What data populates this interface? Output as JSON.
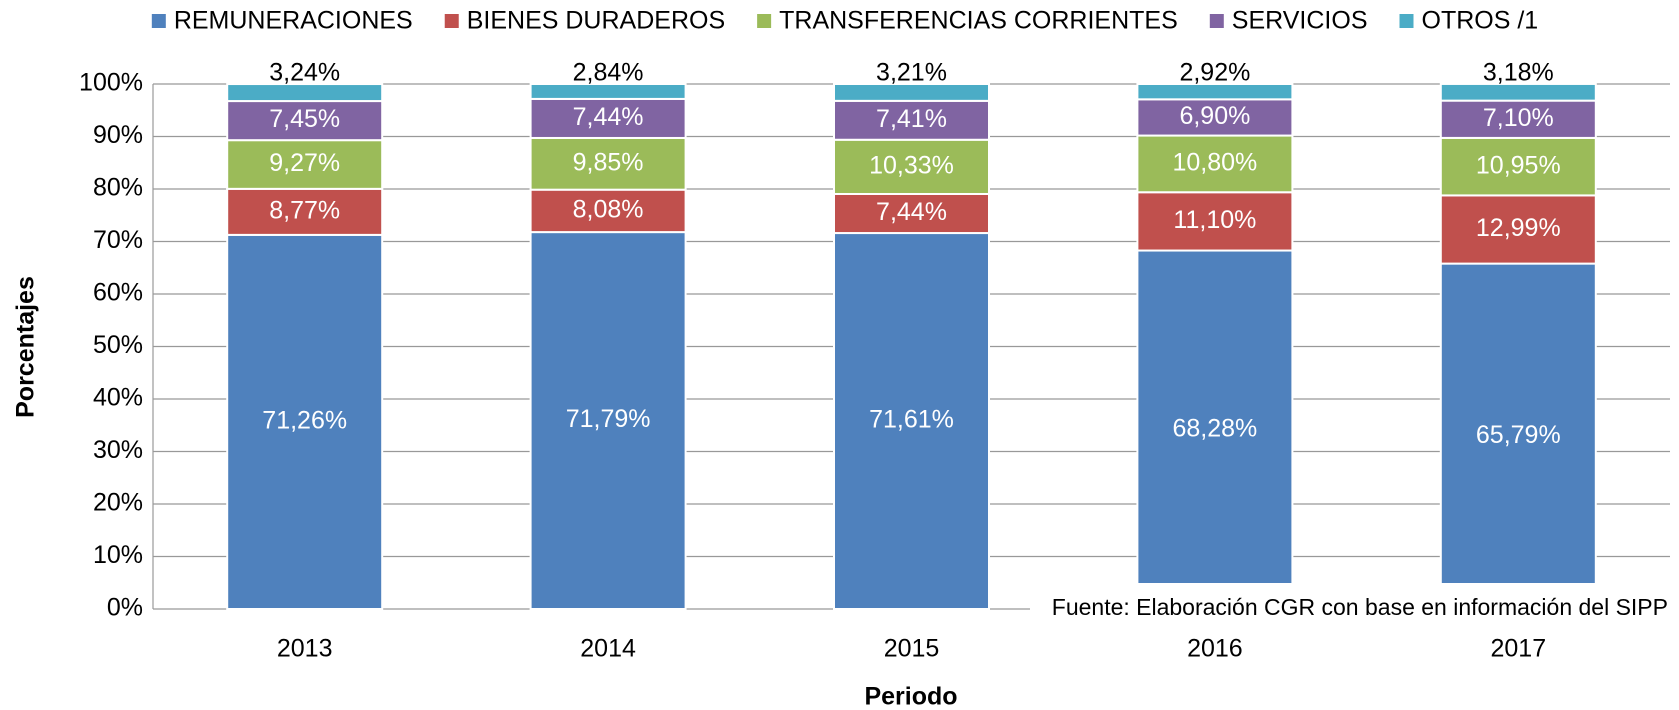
{
  "chart_data": {
    "type": "stacked_bar",
    "categories": [
      "2013",
      "2014",
      "2015",
      "2016",
      "2017"
    ],
    "series": [
      {
        "name": "REMUNERACIONES",
        "color": "#4f81bd",
        "values": [
          71.26,
          71.79,
          71.61,
          68.28,
          65.79
        ],
        "value_labels": [
          "71,26%",
          "71,79%",
          "71,61%",
          "68,28%",
          "65,79%"
        ]
      },
      {
        "name": "BIENES DURADEROS",
        "color": "#c0504d",
        "values": [
          8.77,
          8.08,
          7.44,
          11.1,
          12.99
        ],
        "value_labels": [
          "8,77%",
          "8,08%",
          "7,44%",
          "11,10%",
          "12,99%"
        ]
      },
      {
        "name": "TRANSFERENCIAS CORRIENTES",
        "color": "#9bbb59",
        "values": [
          9.27,
          9.85,
          10.33,
          10.8,
          10.95
        ],
        "value_labels": [
          "9,27%",
          "9,85%",
          "10,33%",
          "10,80%",
          "10,95%"
        ]
      },
      {
        "name": "SERVICIOS",
        "color": "#8064a2",
        "values": [
          7.45,
          7.44,
          7.41,
          6.9,
          7.1
        ],
        "value_labels": [
          "7,45%",
          "7,44%",
          "7,41%",
          "6,90%",
          "7,10%"
        ]
      },
      {
        "name": "OTROS /1",
        "color": "#4bacc6",
        "values": [
          3.24,
          2.84,
          3.21,
          2.92,
          3.18
        ],
        "value_labels": [
          "3,24%",
          "2,84%",
          "3,21%",
          "2,92%",
          "3,18%"
        ]
      }
    ],
    "ylim": [
      0,
      100
    ],
    "yticks": [
      {
        "value": 0,
        "label": "0%"
      },
      {
        "value": 10,
        "label": "10%"
      },
      {
        "value": 20,
        "label": "20%"
      },
      {
        "value": 30,
        "label": "30%"
      },
      {
        "value": 40,
        "label": "40%"
      },
      {
        "value": 50,
        "label": "50%"
      },
      {
        "value": 60,
        "label": "60%"
      },
      {
        "value": 70,
        "label": "70%"
      },
      {
        "value": 80,
        "label": "80%"
      },
      {
        "value": 90,
        "label": "90%"
      },
      {
        "value": 100,
        "label": "100%"
      }
    ],
    "ylabel": "Porcentajes",
    "xlabel": "Periodo",
    "note": "Fuente: Elaboración CGR con base en información del SIPP",
    "grid": true,
    "legend": "top"
  }
}
